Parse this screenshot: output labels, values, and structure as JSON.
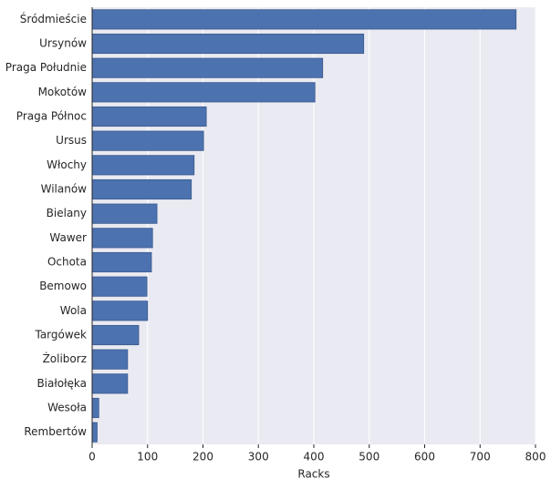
{
  "chart_data": {
    "type": "bar",
    "orientation": "horizontal",
    "xlabel": "Racks",
    "categories": [
      "Śródmieście",
      "Ursynów",
      "Praga Południe",
      "Mokotów",
      "Praga Północ",
      "Ursus",
      "Włochy",
      "Wilanów",
      "Bielany",
      "Wawer",
      "Ochota",
      "Bemowo",
      "Wola",
      "Targówek",
      "Żoliborz",
      "Białołęka",
      "Wesoła",
      "Rembertów"
    ],
    "values": [
      765,
      490,
      416,
      402,
      206,
      201,
      184,
      179,
      117,
      109,
      107,
      99,
      100,
      84,
      64,
      64,
      12,
      9
    ],
    "color": "#4c72b0",
    "xlim": [
      0,
      800
    ],
    "xticks": [
      0,
      100,
      200,
      300,
      400,
      500,
      600,
      700,
      800
    ],
    "grid": true
  }
}
